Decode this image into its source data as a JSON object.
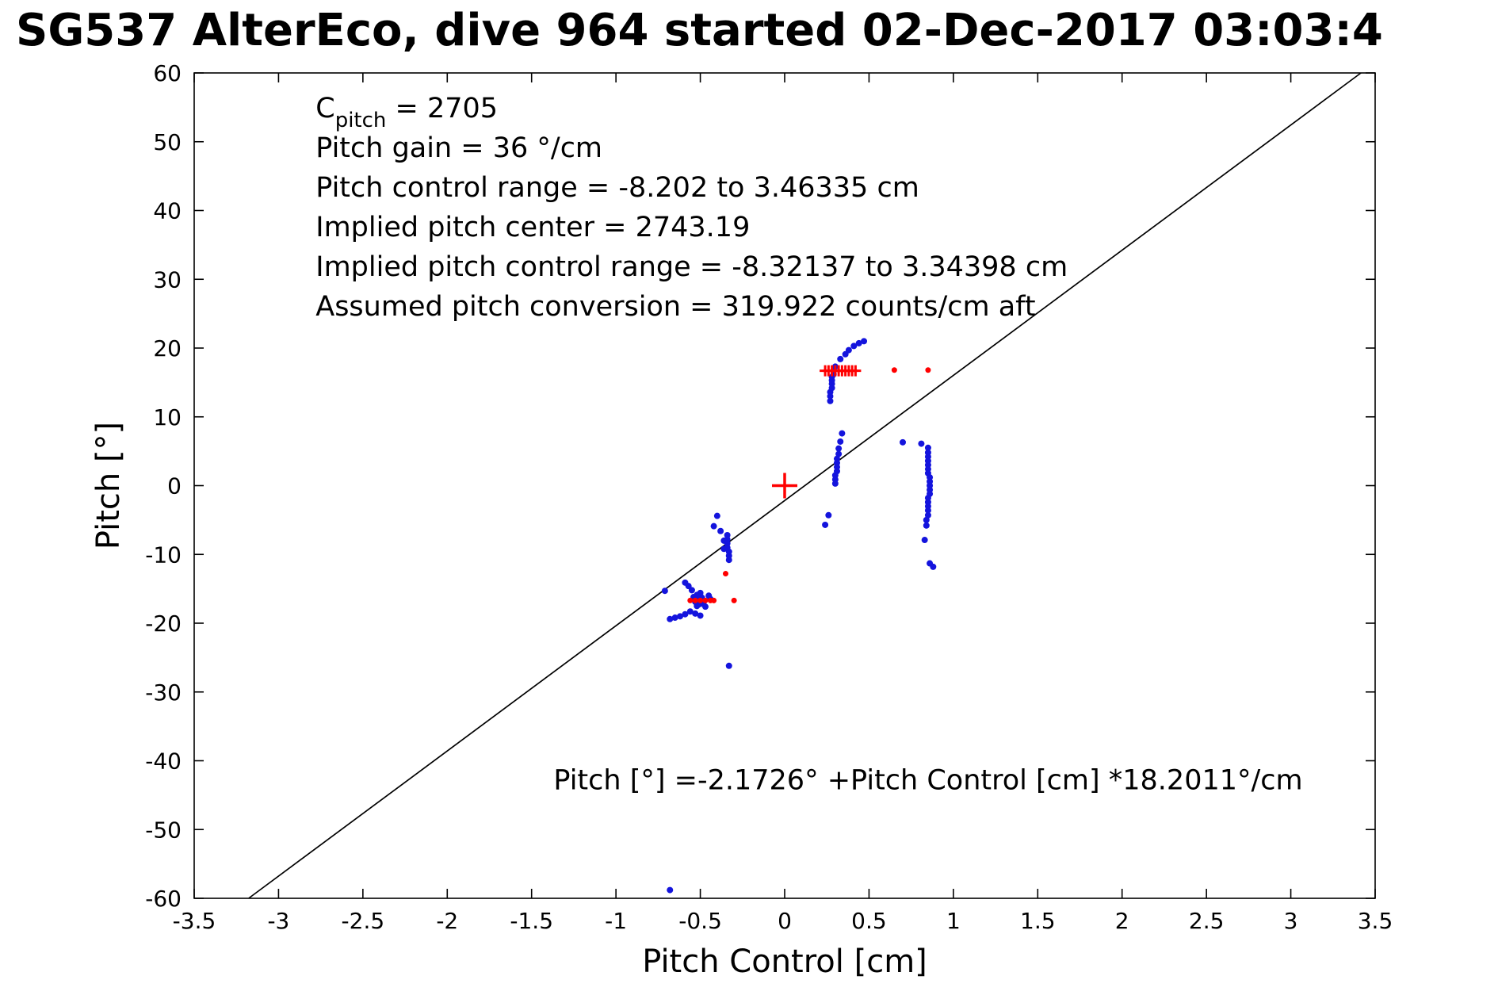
{
  "header": {
    "title": "SG537 AlterEco, dive 964 started 02-Dec-2017 03:03:4"
  },
  "chart_data": {
    "type": "scatter",
    "title": "SG537 AlterEco, dive 964 started 02-Dec-2017 03:03:4",
    "xlabel": "Pitch Control [cm]",
    "ylabel": "Pitch [°]",
    "xlim": [
      -3.5,
      3.5
    ],
    "ylim": [
      -60,
      60
    ],
    "grid": false,
    "legend": null,
    "xticks": [
      -3.5,
      -3,
      -2.5,
      -2,
      -1.5,
      -1,
      -0.5,
      0,
      0.5,
      1,
      1.5,
      2,
      2.5,
      3,
      3.5
    ],
    "xtick_labels": [
      "-3.5",
      "-3",
      "-2.5",
      "-2",
      "-1.5",
      "-1",
      "-0.5",
      "0",
      "0.5",
      "1",
      "1.5",
      "2",
      "2.5",
      "3",
      "3.5"
    ],
    "yticks": [
      -60,
      -50,
      -40,
      -30,
      -20,
      -10,
      0,
      10,
      20,
      30,
      40,
      50,
      60
    ],
    "ytick_labels": [
      "-60",
      "-50",
      "-40",
      "-30",
      "-20",
      "-10",
      "0",
      "10",
      "20",
      "30",
      "40",
      "50",
      "60"
    ],
    "fit_line": {
      "slope_deg_per_cm": 18.2011,
      "intercept_deg": -2.1726,
      "color": "#000000",
      "label": "Pitch [°] =-2.1726° +Pitch Control [cm] *18.2011°/cm",
      "label_pos": {
        "x": -1.37,
        "y": -43
      }
    },
    "annotations": {
      "pos": {
        "x": -2.78,
        "y": 57
      },
      "lines": [
        [
          {
            "text": "C"
          },
          {
            "text": "pitch",
            "sub": true
          },
          {
            "text": " = 2705"
          }
        ],
        [
          {
            "text": "Pitch gain = 36 °/cm"
          }
        ],
        [
          {
            "text": "Pitch control range = -8.202 to 3.46335 cm"
          }
        ],
        [
          {
            "text": "Implied pitch center = 2743.19"
          }
        ],
        [
          {
            "text": "Implied pitch control range = -8.32137 to 3.34398 cm"
          }
        ],
        [
          {
            "text": "Assumed pitch conversion = 319.922 counts/cm aft"
          }
        ]
      ]
    },
    "series": [
      {
        "name": "observed-pitch",
        "marker": "dot",
        "color": "#1414dd",
        "size": 4,
        "points": [
          [
            0.27,
            12.3
          ],
          [
            0.27,
            13.0
          ],
          [
            0.27,
            13.6
          ],
          [
            0.28,
            14.2
          ],
          [
            0.28,
            14.8
          ],
          [
            0.28,
            15.3
          ],
          [
            0.28,
            15.8
          ],
          [
            0.29,
            16.2
          ],
          [
            0.29,
            16.8
          ],
          [
            0.3,
            17.3
          ],
          [
            0.33,
            18.4
          ],
          [
            0.36,
            19.1
          ],
          [
            0.38,
            19.7
          ],
          [
            0.41,
            20.3
          ],
          [
            0.44,
            20.7
          ],
          [
            0.47,
            21.0
          ],
          [
            0.3,
            0.3
          ],
          [
            0.3,
            0.9
          ],
          [
            0.3,
            1.5
          ],
          [
            0.31,
            2.1
          ],
          [
            0.31,
            2.7
          ],
          [
            0.31,
            3.3
          ],
          [
            0.31,
            3.9
          ],
          [
            0.32,
            4.6
          ],
          [
            0.32,
            5.4
          ],
          [
            0.33,
            6.4
          ],
          [
            0.34,
            7.6
          ],
          [
            0.26,
            -4.3
          ],
          [
            0.24,
            -5.7
          ],
          [
            0.7,
            6.3
          ],
          [
            0.81,
            6.1
          ],
          [
            0.85,
            5.5
          ],
          [
            0.85,
            4.8
          ],
          [
            0.85,
            4.2
          ],
          [
            0.85,
            3.6
          ],
          [
            0.85,
            3.0
          ],
          [
            0.85,
            2.4
          ],
          [
            0.85,
            1.8
          ],
          [
            0.86,
            1.2
          ],
          [
            0.86,
            0.6
          ],
          [
            0.86,
            0.0
          ],
          [
            0.86,
            -0.6
          ],
          [
            0.86,
            -1.2
          ],
          [
            0.85,
            -1.8
          ],
          [
            0.85,
            -2.4
          ],
          [
            0.85,
            -3.0
          ],
          [
            0.85,
            -3.6
          ],
          [
            0.85,
            -4.3
          ],
          [
            0.84,
            -5.0
          ],
          [
            0.84,
            -5.8
          ],
          [
            0.83,
            -7.9
          ],
          [
            0.86,
            -11.3
          ],
          [
            0.88,
            -11.8
          ],
          [
            -0.44,
            -16.5
          ],
          [
            -0.45,
            -16.0
          ],
          [
            -0.47,
            -17.6
          ],
          [
            -0.48,
            -16.9
          ],
          [
            -0.49,
            -16.3
          ],
          [
            -0.5,
            -15.6
          ],
          [
            -0.5,
            -17.2
          ],
          [
            -0.5,
            -18.9
          ],
          [
            -0.51,
            -16.6
          ],
          [
            -0.52,
            -15.9
          ],
          [
            -0.52,
            -17.5
          ],
          [
            -0.53,
            -16.9
          ],
          [
            -0.53,
            -18.6
          ],
          [
            -0.54,
            -16.2
          ],
          [
            -0.55,
            -15.2
          ],
          [
            -0.56,
            -18.3
          ],
          [
            -0.57,
            -14.6
          ],
          [
            -0.59,
            -14.1
          ],
          [
            -0.59,
            -18.7
          ],
          [
            -0.62,
            -19.0
          ],
          [
            -0.65,
            -19.2
          ],
          [
            -0.68,
            -19.4
          ],
          [
            -0.71,
            -15.3
          ],
          [
            -0.34,
            -7.2
          ],
          [
            -0.34,
            -7.8
          ],
          [
            -0.34,
            -8.4
          ],
          [
            -0.34,
            -9.0
          ],
          [
            -0.33,
            -9.6
          ],
          [
            -0.33,
            -10.2
          ],
          [
            -0.33,
            -10.8
          ],
          [
            -0.36,
            -8.0
          ],
          [
            -0.36,
            -9.2
          ],
          [
            -0.4,
            -4.4
          ],
          [
            -0.42,
            -5.9
          ],
          [
            -0.38,
            -6.6
          ],
          [
            -0.33,
            -26.2
          ],
          [
            -0.68,
            -58.8
          ]
        ]
      },
      {
        "name": "commanded-pitch-dots",
        "marker": "dot",
        "color": "#ff0000",
        "size": 3.5,
        "points": [
          [
            0.65,
            16.8
          ],
          [
            0.85,
            16.8
          ],
          [
            -0.56,
            -16.7
          ],
          [
            -0.53,
            -16.7
          ],
          [
            -0.5,
            -16.7
          ],
          [
            -0.47,
            -16.7
          ],
          [
            -0.44,
            -16.7
          ],
          [
            -0.42,
            -16.7
          ],
          [
            -0.3,
            -16.7
          ],
          [
            -0.35,
            -12.8
          ]
        ]
      },
      {
        "name": "commanded-pitch-plus",
        "marker": "plus",
        "color": "#ff0000",
        "size": 7,
        "stroke": 3,
        "points": [
          [
            0.24,
            16.7
          ],
          [
            0.26,
            16.7
          ],
          [
            0.28,
            16.7
          ],
          [
            0.3,
            16.7
          ],
          [
            0.32,
            16.7
          ],
          [
            0.34,
            16.7
          ],
          [
            0.36,
            16.7
          ],
          [
            0.38,
            16.7
          ],
          [
            0.4,
            16.7
          ],
          [
            0.42,
            16.7
          ]
        ]
      },
      {
        "name": "implied-center-marker",
        "marker": "plus",
        "color": "#ff0000",
        "size": 16,
        "stroke": 3.5,
        "points": [
          [
            0,
            0
          ]
        ]
      }
    ]
  }
}
